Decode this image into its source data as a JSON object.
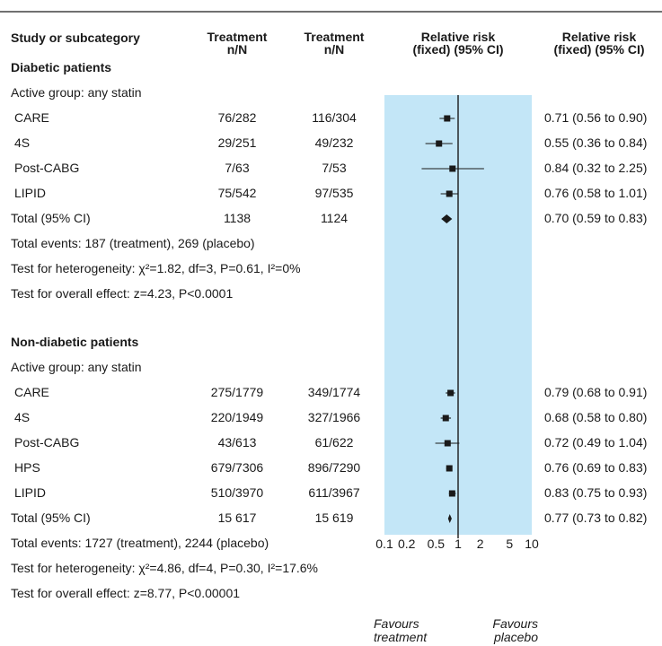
{
  "header": {
    "col_study": "Study or subcategory",
    "col_treatment_a": "Treatment",
    "col_treatment_a_sub": "n/N",
    "col_treatment_b": "Treatment",
    "col_treatment_b_sub": "n/N",
    "col_rr_plot": "Relative risk",
    "col_rr_plot_sub": "(fixed) (95% CI)",
    "col_rr_text": "Relative risk",
    "col_rr_text_sub": "(fixed) (95% CI)"
  },
  "colors": {
    "band": "#c3e6f7",
    "ink": "#1a1a1a"
  },
  "sections": [
    {
      "title": "Diabetic patients",
      "subgroup": "Active group: any statin",
      "studies": [
        {
          "name": "CARE",
          "treatment": "76/282",
          "control": "116/304",
          "ci_text": "0.71 (0.56 to 0.90)"
        },
        {
          "name": "4S",
          "treatment": "29/251",
          "control": "49/232",
          "ci_text": "0.55 (0.36 to 0.84)"
        },
        {
          "name": "Post-CABG",
          "treatment": "7/63",
          "control": "7/53",
          "ci_text": "0.84 (0.32 to 2.25)"
        },
        {
          "name": "LIPID",
          "treatment": "75/542",
          "control": "97/535",
          "ci_text": "0.76 (0.58 to 1.01)"
        }
      ],
      "total": {
        "name": "Total (95% CI)",
        "treatment": "1138",
        "control": "1124",
        "ci_text": "0.70 (0.59 to 0.83)"
      },
      "notes": [
        "Total events: 187 (treatment), 269 (placebo)",
        "Test for heterogeneity: χ²=1.82, df=3, P=0.61, I²=0%",
        "Test for overall effect: z=4.23, P<0.0001"
      ]
    },
    {
      "title": "Non-diabetic patients",
      "subgroup": "Active group: any statin",
      "studies": [
        {
          "name": "CARE",
          "treatment": "275/1779",
          "control": "349/1774",
          "ci_text": "0.79 (0.68 to 0.91)"
        },
        {
          "name": "4S",
          "treatment": "220/1949",
          "control": "327/1966",
          "ci_text": "0.68 (0.58 to 0.80)"
        },
        {
          "name": "Post-CABG",
          "treatment": "43/613",
          "control": "61/622",
          "ci_text": "0.72 (0.49 to 1.04)"
        },
        {
          "name": "HPS",
          "treatment": "679/7306",
          "control": "896/7290",
          "ci_text": "0.76 (0.69 to 0.83)"
        },
        {
          "name": "LIPID",
          "treatment": "510/3970",
          "control": "611/3967",
          "ci_text": "0.83 (0.75 to 0.93)"
        }
      ],
      "total": {
        "name": "Total (95% CI)",
        "treatment": "15 617",
        "control": "15 619",
        "ci_text": "0.77 (0.73 to 0.82)"
      },
      "notes": [
        "Total events: 1727 (treatment), 2244 (placebo)",
        "Test for heterogeneity: χ²=4.86, df=4, P=0.30, I²=17.6%",
        "Test for overall effect: z=8.77, P<0.00001"
      ]
    }
  ],
  "axis": {
    "favours_left": "Favours",
    "favours_left_sub": "treatment",
    "favours_right": "Favours",
    "favours_right_sub": "placebo"
  },
  "chart_data": {
    "type": "forest",
    "scale": "log",
    "xlim": [
      0.1,
      10
    ],
    "reference_line": 1,
    "ticks": [
      0.1,
      0.2,
      0.5,
      1,
      2,
      5,
      10
    ],
    "tick_labels": [
      "0.1",
      "0.2",
      "0.5",
      "1",
      "2",
      "5",
      "10"
    ],
    "series": [
      {
        "name": "Diabetic patients",
        "studies": [
          {
            "study": "CARE",
            "rr": 0.71,
            "lo": 0.56,
            "hi": 0.9
          },
          {
            "study": "4S",
            "rr": 0.55,
            "lo": 0.36,
            "hi": 0.84
          },
          {
            "study": "Post-CABG",
            "rr": 0.84,
            "lo": 0.32,
            "hi": 2.25
          },
          {
            "study": "LIPID",
            "rr": 0.76,
            "lo": 0.58,
            "hi": 1.01
          }
        ],
        "pooled": {
          "rr": 0.7,
          "lo": 0.59,
          "hi": 0.83
        }
      },
      {
        "name": "Non-diabetic patients",
        "studies": [
          {
            "study": "CARE",
            "rr": 0.79,
            "lo": 0.68,
            "hi": 0.91
          },
          {
            "study": "4S",
            "rr": 0.68,
            "lo": 0.58,
            "hi": 0.8
          },
          {
            "study": "Post-CABG",
            "rr": 0.72,
            "lo": 0.49,
            "hi": 1.04
          },
          {
            "study": "HPS",
            "rr": 0.76,
            "lo": 0.69,
            "hi": 0.83
          },
          {
            "study": "LIPID",
            "rr": 0.83,
            "lo": 0.75,
            "hi": 0.93
          }
        ],
        "pooled": {
          "rr": 0.77,
          "lo": 0.73,
          "hi": 0.82
        }
      }
    ]
  }
}
